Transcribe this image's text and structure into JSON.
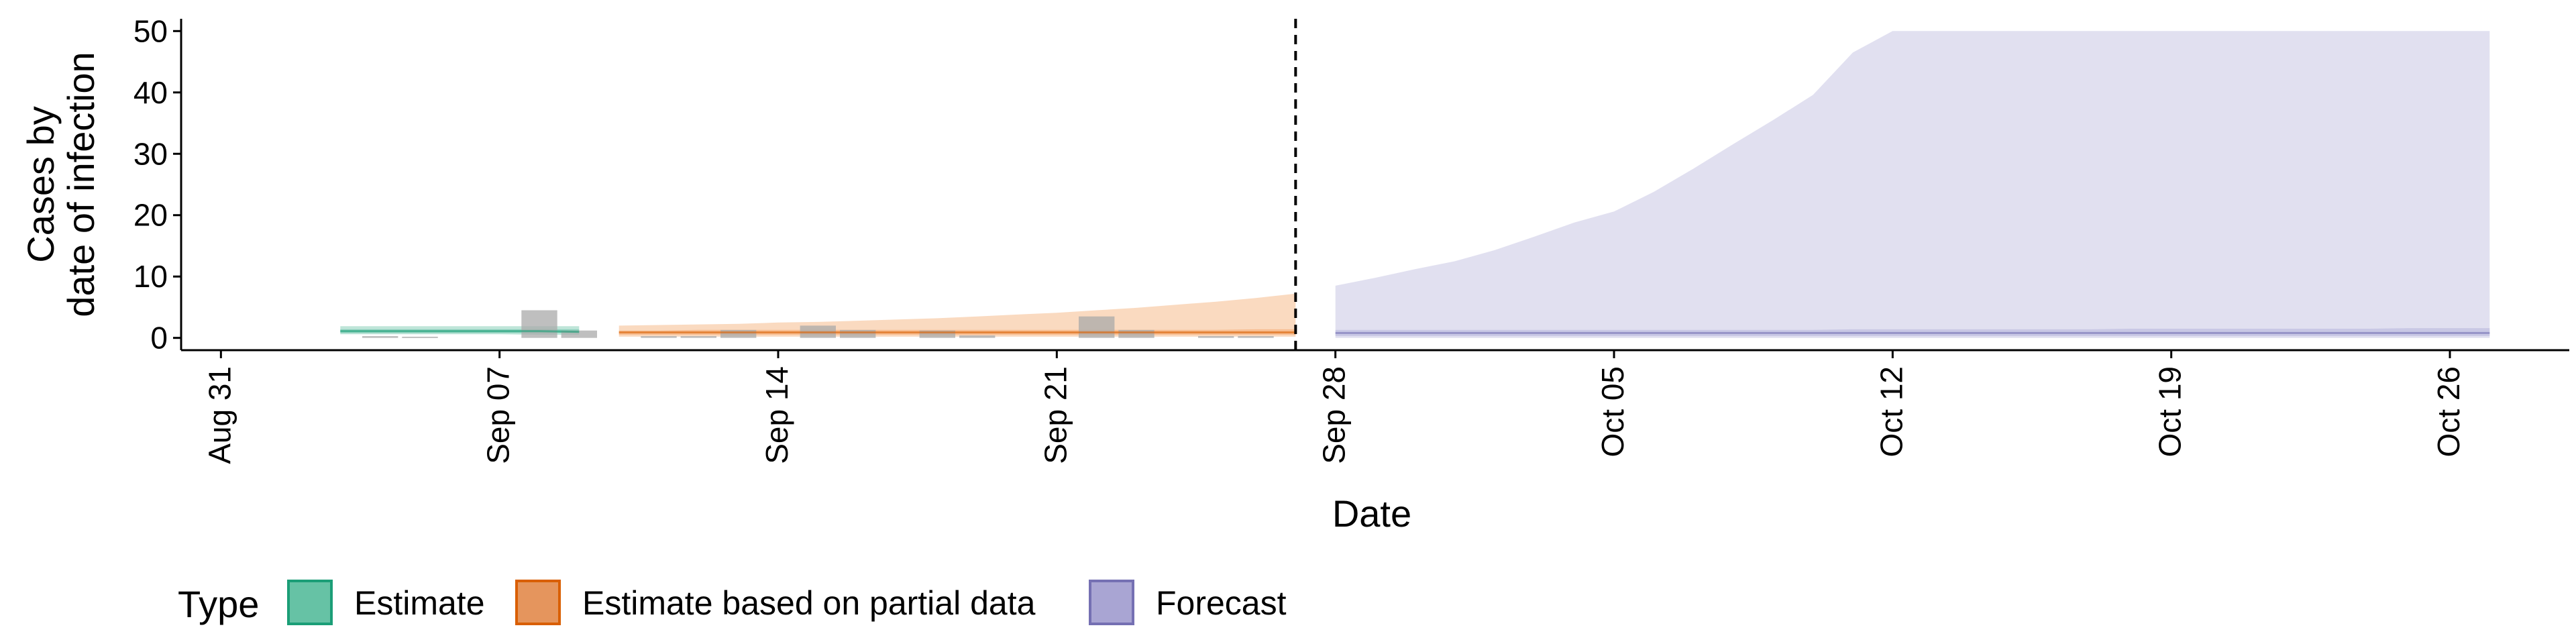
{
  "chart_data": {
    "type": "area",
    "title": "",
    "xlabel": "Date",
    "ylabel_lines": [
      "Cases by",
      "date of infection"
    ],
    "x_range": [
      "2020-08-30",
      "2020-10-29"
    ],
    "ylim": [
      -2,
      52
    ],
    "y_ticks": [
      0,
      10,
      20,
      30,
      40,
      50
    ],
    "x_ticks": [
      {
        "date": "2020-08-31",
        "label": "Aug 31"
      },
      {
        "date": "2020-09-07",
        "label": "Sep 07"
      },
      {
        "date": "2020-09-14",
        "label": "Sep 14"
      },
      {
        "date": "2020-09-21",
        "label": "Sep 21"
      },
      {
        "date": "2020-09-28",
        "label": "Sep 28"
      },
      {
        "date": "2020-10-05",
        "label": "Oct 05"
      },
      {
        "date": "2020-10-12",
        "label": "Oct 12"
      },
      {
        "date": "2020-10-19",
        "label": "Oct 19"
      },
      {
        "date": "2020-10-26",
        "label": "Oct 26"
      }
    ],
    "grid": false,
    "vline": {
      "date": "2020-09-27",
      "style": "dashed"
    },
    "observed_cases": {
      "color": "#a9a9a9",
      "points": [
        {
          "date": "2020-09-04",
          "value": 0.3
        },
        {
          "date": "2020-09-05",
          "value": 0.2
        },
        {
          "date": "2020-09-08",
          "value": 4.5
        },
        {
          "date": "2020-09-09",
          "value": 1.2
        },
        {
          "date": "2020-09-11",
          "value": 0.3
        },
        {
          "date": "2020-09-12",
          "value": 0.3
        },
        {
          "date": "2020-09-13",
          "value": 1.3
        },
        {
          "date": "2020-09-15",
          "value": 2.0
        },
        {
          "date": "2020-09-16",
          "value": 1.3
        },
        {
          "date": "2020-09-18",
          "value": 1.2
        },
        {
          "date": "2020-09-19",
          "value": 0.4
        },
        {
          "date": "2020-09-22",
          "value": 3.5
        },
        {
          "date": "2020-09-23",
          "value": 1.3
        },
        {
          "date": "2020-09-25",
          "value": 0.3
        },
        {
          "date": "2020-09-26",
          "value": 0.3
        }
      ]
    },
    "series": [
      {
        "name": "Estimate",
        "color": "#1b9e77",
        "fill": "#66c2a5",
        "start": "2020-09-03",
        "end": "2020-09-09",
        "outer_lower": [
          0.6,
          0.6,
          0.6,
          0.6,
          0.6,
          0.5,
          0.5
        ],
        "outer_upper": [
          1.9,
          1.9,
          1.9,
          1.9,
          1.9,
          1.9,
          1.9
        ],
        "inner_lower": [
          0.8,
          0.8,
          0.8,
          0.8,
          0.8,
          0.8,
          0.8
        ],
        "inner_upper": [
          1.4,
          1.4,
          1.4,
          1.4,
          1.4,
          1.4,
          1.4
        ],
        "median": [
          1.1,
          1.1,
          1.1,
          1.1,
          1.1,
          1.1,
          1.0
        ]
      },
      {
        "name": "Estimate based on partial data",
        "color": "#d95f02",
        "fill": "#f4a66a",
        "start": "2020-09-10",
        "end": "2020-09-27",
        "outer_lower": [
          0.2,
          0.2,
          0.2,
          0.2,
          0.2,
          0.2,
          0.2,
          0.2,
          0.2,
          0.2,
          0.2,
          0.2,
          0.2,
          0.2,
          0.2,
          0.2,
          0.2,
          0.2
        ],
        "outer_upper": [
          2.0,
          2.1,
          2.2,
          2.3,
          2.5,
          2.6,
          2.8,
          3.0,
          3.2,
          3.5,
          3.8,
          4.1,
          4.5,
          4.9,
          5.4,
          5.9,
          6.5,
          7.2
        ],
        "inner_lower": [
          0.5,
          0.5,
          0.5,
          0.5,
          0.5,
          0.5,
          0.5,
          0.5,
          0.5,
          0.5,
          0.5,
          0.5,
          0.5,
          0.5,
          0.5,
          0.5,
          0.5,
          0.5
        ],
        "inner_upper": [
          1.2,
          1.2,
          1.3,
          1.3,
          1.3,
          1.3,
          1.3,
          1.3,
          1.3,
          1.3,
          1.3,
          1.3,
          1.3,
          1.3,
          1.3,
          1.3,
          1.4,
          1.4
        ],
        "median": [
          0.9,
          0.9,
          0.9,
          0.9,
          0.9,
          0.9,
          0.9,
          0.9,
          0.9,
          0.9,
          0.9,
          0.9,
          0.9,
          0.9,
          0.9,
          0.9,
          0.9,
          0.9
        ]
      },
      {
        "name": "Forecast",
        "color": "#7570b3",
        "fill": "#b7b4dc",
        "start": "2020-09-28",
        "end": "2020-10-27",
        "outer_lower": [
          0,
          0,
          0,
          0,
          0,
          0,
          0,
          0,
          0,
          0,
          0,
          0,
          0,
          0,
          0,
          0,
          0,
          0,
          0,
          0,
          0,
          0,
          0,
          0,
          0,
          0,
          0,
          0,
          0,
          0
        ],
        "outer_upper": [
          8.5,
          9.8,
          11.2,
          12.5,
          14.3,
          16.5,
          18.8,
          20.6,
          23.8,
          27.6,
          31.6,
          35.5,
          39.6,
          46.5,
          50,
          50,
          50,
          50,
          50,
          50,
          50,
          50,
          50,
          50,
          50,
          50,
          50,
          50,
          50,
          50
        ],
        "inner_lower": [
          0.3,
          0.3,
          0.3,
          0.3,
          0.3,
          0.3,
          0.3,
          0.3,
          0.3,
          0.3,
          0.3,
          0.3,
          0.3,
          0.3,
          0.3,
          0.3,
          0.3,
          0.3,
          0.3,
          0.3,
          0.3,
          0.3,
          0.3,
          0.3,
          0.3,
          0.3,
          0.3,
          0.3,
          0.3,
          0.3
        ],
        "inner_upper": [
          1.3,
          1.3,
          1.3,
          1.3,
          1.3,
          1.3,
          1.3,
          1.3,
          1.3,
          1.3,
          1.3,
          1.3,
          1.3,
          1.4,
          1.4,
          1.4,
          1.4,
          1.4,
          1.4,
          1.4,
          1.5,
          1.5,
          1.5,
          1.5,
          1.5,
          1.5,
          1.5,
          1.6,
          1.6,
          1.6
        ],
        "median": [
          0.8,
          0.8,
          0.8,
          0.8,
          0.8,
          0.8,
          0.8,
          0.8,
          0.8,
          0.8,
          0.8,
          0.8,
          0.8,
          0.8,
          0.8,
          0.8,
          0.8,
          0.8,
          0.8,
          0.8,
          0.8,
          0.8,
          0.8,
          0.8,
          0.8,
          0.8,
          0.8,
          0.8,
          0.8,
          0.8
        ]
      }
    ],
    "legend": {
      "title": "Type",
      "position": "bottom",
      "entries": [
        {
          "label": "Estimate",
          "fill": "#66c2a5",
          "stroke": "#1b9e77"
        },
        {
          "label": "Estimate based on partial data",
          "fill": "#e5955d",
          "stroke": "#d95f02"
        },
        {
          "label": "Forecast",
          "fill": "#a9a5d3",
          "stroke": "#7570b3"
        }
      ]
    }
  }
}
